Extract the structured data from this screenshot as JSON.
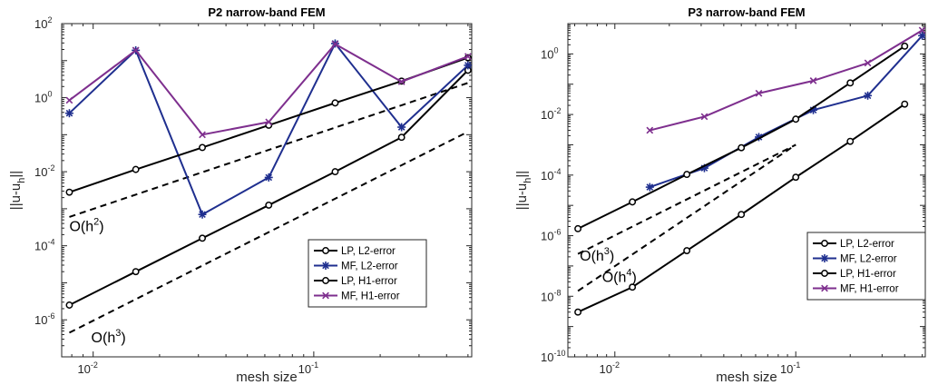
{
  "colors": {
    "black": "#000000",
    "blue": "#1f2f8f",
    "purple": "#7e2f8e"
  },
  "chart_data": [
    {
      "type": "line",
      "title": "P2 narrow-band FEM",
      "xlabel": "mesh size",
      "ylabel": "||u-u_h||",
      "xscale": "log",
      "yscale": "log",
      "xlim": [
        0.0072,
        0.52
      ],
      "ylim": [
        1e-07,
        100
      ],
      "xticks": [
        {
          "value": 0.01,
          "base": "10",
          "exp": "-2"
        },
        {
          "value": 0.1,
          "base": "10",
          "exp": "-1"
        }
      ],
      "yticks": [
        {
          "value": 1e-06,
          "base": "10",
          "exp": "-6"
        },
        {
          "value": 0.0001,
          "base": "10",
          "exp": "-4"
        },
        {
          "value": 0.01,
          "base": "10",
          "exp": "-2"
        },
        {
          "value": 1,
          "base": "10",
          "exp": "0"
        },
        {
          "value": 100,
          "base": "10",
          "exp": "2"
        }
      ],
      "legend": {
        "position": "bottom-right"
      },
      "series": [
        {
          "name": "LP, L2-error",
          "color": "#000000",
          "marker": "circle",
          "x": [
            0.0078,
            0.0156,
            0.03125,
            0.0625,
            0.125,
            0.25,
            0.5
          ],
          "y": [
            2.5e-06,
            2e-05,
            0.00016,
            0.00125,
            0.01,
            0.085,
            5.5
          ]
        },
        {
          "name": "MF, L2-error",
          "color": "#1f2f8f",
          "marker": "star",
          "x": [
            0.0078,
            0.0156,
            0.03125,
            0.0625,
            0.125,
            0.25,
            0.5
          ],
          "y": [
            0.38,
            19,
            0.0007,
            0.007,
            29,
            0.16,
            7.5
          ]
        },
        {
          "name": "LP, H1-error",
          "color": "#000000",
          "marker": "circle",
          "x": [
            0.0078,
            0.0156,
            0.03125,
            0.0625,
            0.125,
            0.25,
            0.5
          ],
          "y": [
            0.0028,
            0.0115,
            0.045,
            0.18,
            0.72,
            2.8,
            12
          ]
        },
        {
          "name": "MF, H1-error",
          "color": "#7e2f8e",
          "marker": "x",
          "x": [
            0.0078,
            0.0156,
            0.03125,
            0.0625,
            0.125,
            0.25,
            0.5
          ],
          "y": [
            0.85,
            19,
            0.1,
            0.22,
            28,
            2.7,
            13
          ]
        }
      ],
      "reference_lines": [
        {
          "label": "O(h",
          "exp": "2",
          "close": ")",
          "x": [
            0.0078,
            0.5
          ],
          "y": [
            0.0006,
            2.5
          ],
          "label_at": [
            0.0078,
            0.00025
          ]
        },
        {
          "label": "O(h",
          "exp": "3",
          "close": ")",
          "x": [
            0.0078,
            0.5
          ],
          "y": [
            4.5e-07,
            0.12
          ],
          "label_at": [
            0.0098,
            2.5e-07
          ]
        }
      ]
    },
    {
      "type": "line",
      "title": "P3 narrow-band FEM",
      "xlabel": "mesh size",
      "ylabel": "||u-u_h||",
      "xscale": "log",
      "yscale": "log",
      "xlim": [
        0.0055,
        0.52
      ],
      "ylim": [
        1e-10,
        10
      ],
      "xticks": [
        {
          "value": 0.01,
          "base": "10",
          "exp": "-2"
        },
        {
          "value": 0.1,
          "base": "10",
          "exp": "-1"
        }
      ],
      "yticks": [
        {
          "value": 1e-10,
          "base": "10",
          "exp": "-10"
        },
        {
          "value": 1e-08,
          "base": "10",
          "exp": "-8"
        },
        {
          "value": 1e-06,
          "base": "10",
          "exp": "-6"
        },
        {
          "value": 0.0001,
          "base": "10",
          "exp": "-4"
        },
        {
          "value": 0.01,
          "base": "10",
          "exp": "-2"
        },
        {
          "value": 1,
          "base": "10",
          "exp": "0"
        }
      ],
      "legend": {
        "position": "bottom-right"
      },
      "series": [
        {
          "name": "LP, L2-error",
          "color": "#000000",
          "marker": "circle",
          "x": [
            0.00625,
            0.0125,
            0.025,
            0.05,
            0.1,
            0.2,
            0.4
          ],
          "y": [
            3e-09,
            2e-08,
            3.2e-07,
            5e-06,
            8.5e-05,
            0.0013,
            0.022
          ]
        },
        {
          "name": "MF, L2-error",
          "color": "#1f2f8f",
          "marker": "star",
          "x": [
            0.0156,
            0.03125,
            0.0625,
            0.125,
            0.25,
            0.5
          ],
          "y": [
            4e-05,
            0.00017,
            0.0018,
            0.014,
            0.042,
            4
          ]
        },
        {
          "name": "LP, H1-error",
          "color": "#000000",
          "marker": "circle",
          "x": [
            0.00625,
            0.0125,
            0.025,
            0.05,
            0.1,
            0.2,
            0.4
          ],
          "y": [
            1.7e-06,
            1.3e-05,
            0.000105,
            0.0008,
            0.007,
            0.11,
            1.8
          ]
        },
        {
          "name": "MF, H1-error",
          "color": "#7e2f8e",
          "marker": "x",
          "x": [
            0.0156,
            0.03125,
            0.0625,
            0.125,
            0.25,
            0.5
          ],
          "y": [
            0.003,
            0.0085,
            0.05,
            0.13,
            0.5,
            6
          ]
        }
      ],
      "reference_lines": [
        {
          "label": "O(h",
          "exp": "3",
          "close": ")",
          "x": [
            0.00625,
            0.1
          ],
          "y": [
            2.5e-07,
            0.001
          ],
          "label_at": [
            0.0064,
            1.5e-07
          ]
        },
        {
          "label": "O(h",
          "exp": "4",
          "close": ")",
          "x": [
            0.00625,
            0.1
          ],
          "y": [
            1.5e-08,
            0.001
          ],
          "label_at": [
            0.0085,
            3e-08
          ]
        }
      ]
    }
  ]
}
